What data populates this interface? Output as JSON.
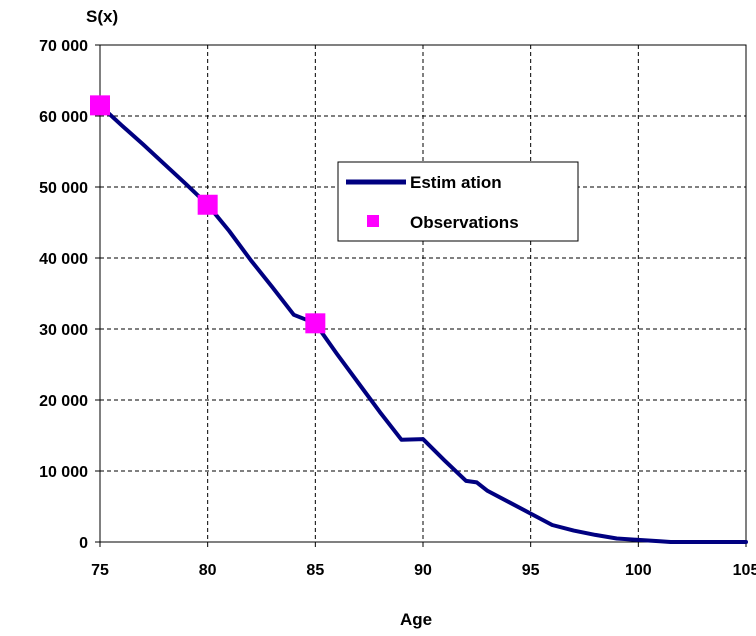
{
  "chart_data": {
    "type": "line",
    "ylabel": "S(x)",
    "xlabel": "Age",
    "xlim": [
      75,
      105
    ],
    "ylim": [
      0,
      70000
    ],
    "x_ticks": [
      75,
      80,
      85,
      90,
      95,
      100,
      105
    ],
    "x_tick_labels": [
      "75",
      "80",
      "85",
      "90",
      "95",
      "100",
      "105"
    ],
    "y_ticks": [
      0,
      10000,
      20000,
      30000,
      40000,
      50000,
      60000,
      70000
    ],
    "y_tick_labels": [
      "0",
      "10 000",
      "20 000",
      "30 000",
      "40 000",
      "50 000",
      "60 000",
      "70 000"
    ],
    "grid": true,
    "legend_position": "center-right",
    "series": [
      {
        "name": "Estim ation",
        "kind": "line",
        "color": "#000080",
        "x": [
          75,
          76,
          77,
          78,
          79,
          80,
          81,
          82,
          83,
          84,
          85,
          86,
          87,
          88,
          89,
          90,
          91,
          92,
          92.5,
          93,
          94,
          95,
          96,
          97,
          98,
          99,
          100,
          101,
          101.5,
          102,
          103,
          104,
          105
        ],
        "y": [
          61500,
          58700,
          56000,
          53200,
          50400,
          47500,
          43800,
          39700,
          35900,
          32000,
          30800,
          26500,
          22400,
          18300,
          14400,
          14500,
          11500,
          8600,
          8400,
          7200,
          5600,
          4000,
          2400,
          1600,
          1000,
          500,
          300,
          100,
          0,
          0,
          0,
          0,
          0
        ]
      },
      {
        "name": "Observations",
        "kind": "scatter",
        "color": "#FF00FF",
        "x": [
          75,
          80,
          85
        ],
        "y": [
          61500,
          47500,
          30800
        ]
      }
    ]
  }
}
